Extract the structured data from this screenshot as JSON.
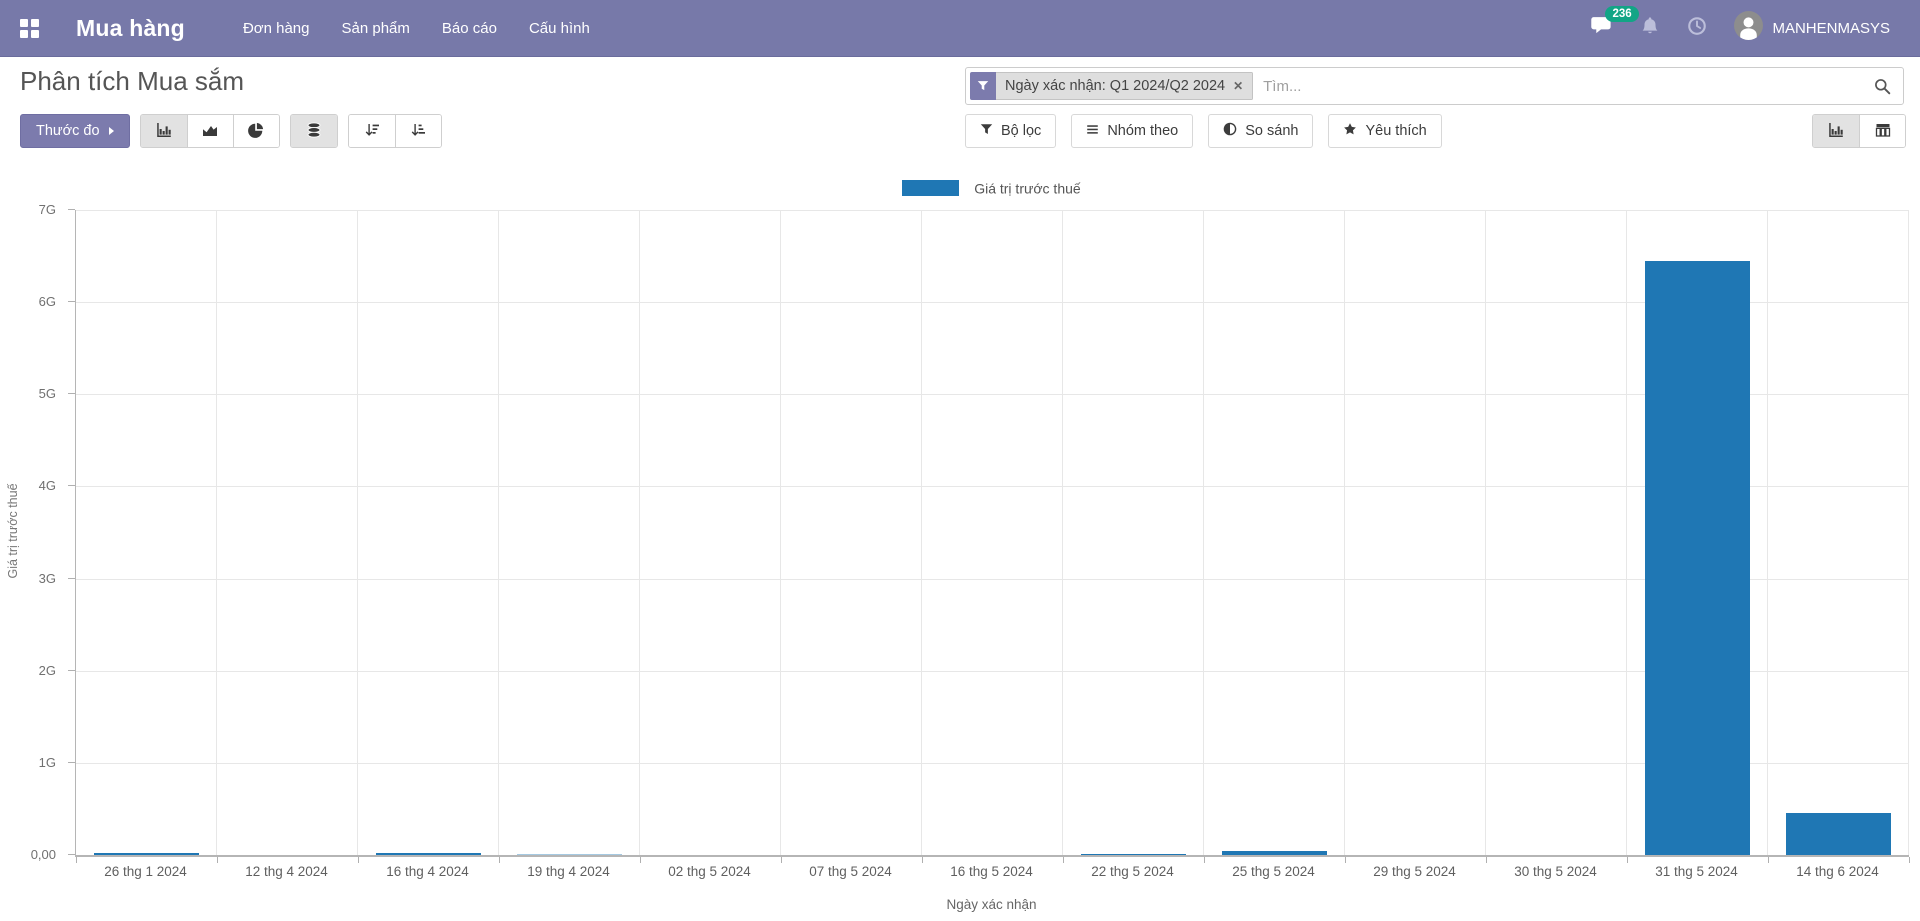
{
  "colors": {
    "navbar_bg": "#7779a9",
    "accent": "#7c7bad",
    "bar": "#1f77b4",
    "badge": "#12a586"
  },
  "navbar": {
    "brand": "Mua hàng",
    "menu_items": [
      "Đơn hàng",
      "Sản phẩm",
      "Báo cáo",
      "Cấu hình"
    ],
    "message_count": "236",
    "user_name": "MANHENMASYS"
  },
  "control_panel": {
    "title": "Phân tích Mua sắm",
    "search": {
      "facet_icon": "filter-icon",
      "facet_label": "Ngày xác nhận: Q1 2024/Q2 2024",
      "placeholder": "Tìm...",
      "search_icon": "search-icon"
    },
    "measures_button": "Thước đo",
    "chart_type_buttons": [
      {
        "icon": "bar-chart-icon",
        "active": true
      },
      {
        "icon": "area-chart-icon",
        "active": false
      },
      {
        "icon": "pie-chart-icon",
        "active": false
      }
    ],
    "stacked_button": {
      "icon": "database-icon",
      "active": true
    },
    "sort_buttons": [
      {
        "icon": "sort-desc-icon",
        "active": false
      },
      {
        "icon": "sort-asc-icon",
        "active": false
      }
    ],
    "filter_buttons": [
      {
        "icon": "filter-icon",
        "label": "Bộ lọc"
      },
      {
        "icon": "bars-icon",
        "label": "Nhóm theo"
      },
      {
        "icon": "adjust-icon",
        "label": "So sánh"
      },
      {
        "icon": "star-icon",
        "label": "Yêu thích"
      }
    ],
    "view_switcher": [
      {
        "icon": "graph-view-icon",
        "active": true
      },
      {
        "icon": "pivot-view-icon",
        "active": false
      }
    ]
  },
  "chart_data": {
    "type": "bar",
    "legend": [
      "Giá trị trước thuế"
    ],
    "legend_position": "top",
    "xlabel": "Ngày xác nhận",
    "ylabel": "Giá trị trước thuế",
    "categories": [
      "26 thg 1 2024",
      "12 thg 4 2024",
      "16 thg 4 2024",
      "19 thg 4 2024",
      "02 thg 5 2024",
      "07 thg 5 2024",
      "16 thg 5 2024",
      "22 thg 5 2024",
      "25 thg 5 2024",
      "29 thg 5 2024",
      "30 thg 5 2024",
      "31 thg 5 2024",
      "14 thg 6 2024"
    ],
    "values": [
      0.02,
      0,
      0.02,
      0.005,
      0,
      0,
      0,
      0.015,
      0.04,
      0,
      0,
      6.45,
      0.46
    ],
    "unit": "G",
    "ylim": [
      0,
      7
    ],
    "ytick_labels": [
      "0,00",
      "1G",
      "2G",
      "3G",
      "4G",
      "5G",
      "6G",
      "7G"
    ],
    "grid": true,
    "bar_color": "#1f77b4"
  }
}
